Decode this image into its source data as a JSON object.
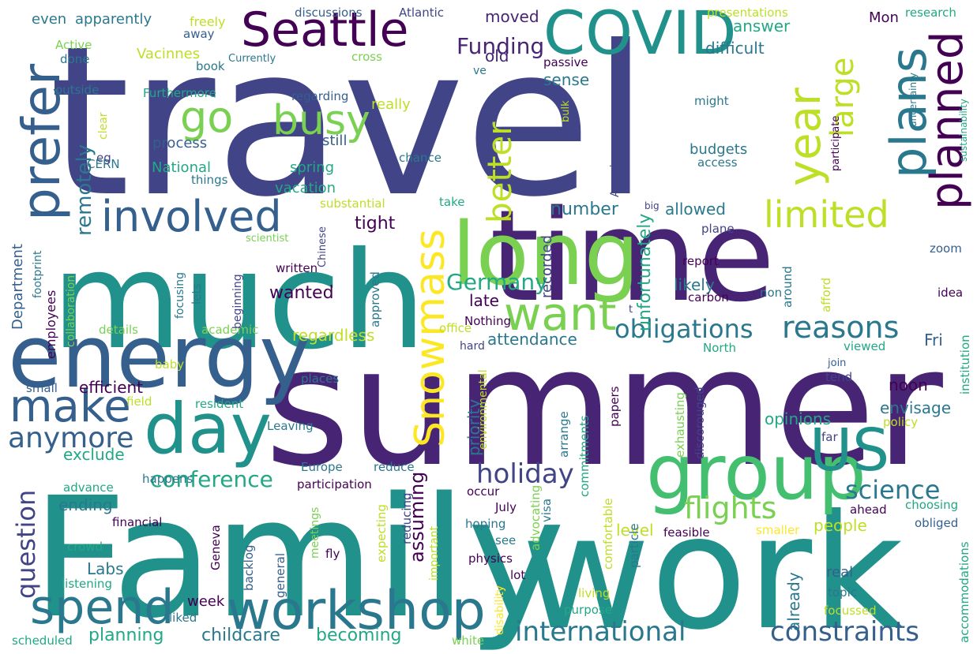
{
  "word_cloud": {
    "palette": {
      "deep_purple": "#440154",
      "purple": "#482475",
      "indigo": "#414487",
      "blue": "#355f8d",
      "steel": "#2a788e",
      "teal": "#21918c",
      "sea": "#22a884",
      "green": "#44bf70",
      "lime": "#7ad151",
      "chartreuse": "#bddf26",
      "yellow": "#fde725"
    },
    "words": [
      {
        "text": "travel",
        "color": "#414487"
      },
      {
        "text": "summer",
        "color": "#482475"
      },
      {
        "text": "Family",
        "color": "#21918c"
      },
      {
        "text": "work",
        "color": "#21918c"
      },
      {
        "text": "time",
        "color": "#482475"
      },
      {
        "text": "much",
        "color": "#21918c"
      },
      {
        "text": "long",
        "color": "#7ad151"
      },
      {
        "text": "energy",
        "color": "#355f8d"
      },
      {
        "text": "group",
        "color": "#44bf70"
      },
      {
        "text": "COVID",
        "color": "#21918c"
      },
      {
        "text": "day",
        "color": "#21918c"
      },
      {
        "text": "US",
        "color": "#21918c"
      },
      {
        "text": "workshop",
        "color": "#2a788e"
      },
      {
        "text": "Seattle",
        "color": "#440154"
      },
      {
        "text": "involved",
        "color": "#355f8d"
      },
      {
        "text": "make",
        "color": "#355f8d"
      },
      {
        "text": "spend",
        "color": "#2a788e"
      },
      {
        "text": "prefer",
        "color": "#355f8d"
      },
      {
        "text": "want",
        "color": "#7ad151"
      },
      {
        "text": "plans",
        "color": "#2a788e"
      },
      {
        "text": "planned",
        "color": "#440154"
      },
      {
        "text": "busy",
        "color": "#7ad151"
      },
      {
        "text": "go",
        "color": "#7ad151"
      },
      {
        "text": "year",
        "color": "#bddf26"
      },
      {
        "text": "limited",
        "color": "#bddf26"
      },
      {
        "text": "Snowmass",
        "color": "#fde725"
      },
      {
        "text": "better",
        "color": "#bddf26"
      },
      {
        "text": "large",
        "color": "#bddf26"
      },
      {
        "text": "reasons",
        "color": "#2a788e"
      },
      {
        "text": "obligations",
        "color": "#2a788e"
      },
      {
        "text": "flights",
        "color": "#7ad151"
      },
      {
        "text": "anymore",
        "color": "#355f8d"
      },
      {
        "text": "international",
        "color": "#2a788e"
      },
      {
        "text": "constraints",
        "color": "#355f8d"
      },
      {
        "text": "holiday",
        "color": "#414487"
      },
      {
        "text": "question",
        "color": "#414487"
      },
      {
        "text": "science",
        "color": "#2a788e"
      },
      {
        "text": "Germany",
        "color": "#22a884"
      },
      {
        "text": "conference",
        "color": "#22a884"
      },
      {
        "text": "Funding",
        "color": "#482475"
      },
      {
        "text": "remotely",
        "color": "#2a788e"
      },
      {
        "text": "childcare",
        "color": "#2a788e"
      },
      {
        "text": "becoming",
        "color": "#22a884"
      },
      {
        "text": "planning",
        "color": "#22a884"
      },
      {
        "text": "Labs",
        "color": "#2a788e"
      },
      {
        "text": "assuming",
        "color": "#440154"
      },
      {
        "text": "efficient",
        "color": "#440154"
      },
      {
        "text": "exclude",
        "color": "#22a884"
      },
      {
        "text": "ending",
        "color": "#2a788e"
      },
      {
        "text": "attendance",
        "color": "#2a788e"
      },
      {
        "text": "number",
        "color": "#2a788e"
      },
      {
        "text": "tight",
        "color": "#440154"
      },
      {
        "text": "recorded",
        "color": "#414487"
      },
      {
        "text": "unfortunately",
        "color": "#22a884"
      },
      {
        "text": "allowed",
        "color": "#2a788e"
      },
      {
        "text": "likely",
        "color": "#2a788e"
      },
      {
        "text": "wanted",
        "color": "#440154"
      },
      {
        "text": "late",
        "color": "#440154"
      },
      {
        "text": "regardless",
        "color": "#bddf26"
      },
      {
        "text": "priority",
        "color": "#2a788e"
      },
      {
        "text": "opinions",
        "color": "#22a884"
      },
      {
        "text": "people",
        "color": "#bddf26"
      },
      {
        "text": "level",
        "color": "#bddf26"
      },
      {
        "text": "already",
        "color": "#2a788e"
      },
      {
        "text": "envisage",
        "color": "#2a788e"
      },
      {
        "text": "noon",
        "color": "#440154"
      },
      {
        "text": "Fri",
        "color": "#355f8d"
      },
      {
        "text": "answer",
        "color": "#22a884"
      },
      {
        "text": "difficult",
        "color": "#2a788e"
      },
      {
        "text": "sense",
        "color": "#2a788e"
      },
      {
        "text": "moved",
        "color": "#482475"
      },
      {
        "text": "old",
        "color": "#482475"
      },
      {
        "text": "Vacinnes",
        "color": "#bddf26"
      },
      {
        "text": "process",
        "color": "#355f8d"
      },
      {
        "text": "National",
        "color": "#22a884"
      },
      {
        "text": "still",
        "color": "#355f8d"
      },
      {
        "text": "spring",
        "color": "#22a884"
      },
      {
        "text": "vacation",
        "color": "#22a884"
      },
      {
        "text": "budgets",
        "color": "#2a788e"
      },
      {
        "text": "apparently",
        "color": "#2a788e"
      },
      {
        "text": "even",
        "color": "#2a788e"
      },
      {
        "text": "freely",
        "color": "#bddf26"
      },
      {
        "text": "discussions",
        "color": "#355f8d"
      },
      {
        "text": "Atlantic",
        "color": "#414487"
      },
      {
        "text": "presentations",
        "color": "#bddf26"
      },
      {
        "text": "Mon",
        "color": "#440154"
      },
      {
        "text": "research",
        "color": "#22a884"
      },
      {
        "text": "really",
        "color": "#bddf26"
      },
      {
        "text": "chance",
        "color": "#2a788e"
      },
      {
        "text": "week",
        "color": "#440154"
      },
      {
        "text": "Department",
        "color": "#355f8d"
      },
      {
        "text": "employees",
        "color": "#440154"
      },
      {
        "text": "collaboration",
        "color": "#7ad151"
      },
      {
        "text": "footprint",
        "color": "#2a788e"
      },
      {
        "text": "substantial",
        "color": "#bddf26"
      },
      {
        "text": "take",
        "color": "#22a884"
      },
      {
        "text": "America",
        "color": "#414487"
      },
      {
        "text": "big",
        "color": "#414487"
      },
      {
        "text": "plane",
        "color": "#414487"
      },
      {
        "text": "zoom",
        "color": "#355f8d"
      },
      {
        "text": "report",
        "color": "#440154"
      },
      {
        "text": "carbon",
        "color": "#440154"
      },
      {
        "text": "non",
        "color": "#2a788e"
      },
      {
        "text": "around",
        "color": "#2a788e"
      },
      {
        "text": "afford",
        "color": "#bddf26"
      },
      {
        "text": "idea",
        "color": "#440154"
      },
      {
        "text": "viewed",
        "color": "#22a884"
      },
      {
        "text": "join",
        "color": "#355f8d"
      },
      {
        "text": "tend",
        "color": "#414487"
      },
      {
        "text": "North",
        "color": "#22a884"
      },
      {
        "text": "hard",
        "color": "#414487"
      },
      {
        "text": "office",
        "color": "#bddf26"
      },
      {
        "text": "Nothing",
        "color": "#440154"
      },
      {
        "text": "papers",
        "color": "#440154"
      },
      {
        "text": "exhausting",
        "color": "#7ad151"
      },
      {
        "text": "discorouged",
        "color": "#414487"
      },
      {
        "text": "institution",
        "color": "#22a884"
      },
      {
        "text": "policy",
        "color": "#bddf26"
      },
      {
        "text": "far",
        "color": "#414487"
      },
      {
        "text": "ahead",
        "color": "#440154"
      },
      {
        "text": "choosing",
        "color": "#22a884"
      },
      {
        "text": "feasible",
        "color": "#440154"
      },
      {
        "text": "smaller",
        "color": "#fde725"
      },
      {
        "text": "obliged",
        "color": "#355f8d"
      },
      {
        "text": "accommodations",
        "color": "#22a884"
      },
      {
        "text": "real",
        "color": "#355f8d"
      },
      {
        "text": "topic",
        "color": "#2a788e"
      },
      {
        "text": "focussed",
        "color": "#bddf26"
      },
      {
        "text": "purpose",
        "color": "#22a884"
      },
      {
        "text": "white",
        "color": "#7ad151"
      },
      {
        "text": "scheduled",
        "color": "#22a884"
      },
      {
        "text": "liked",
        "color": "#2a788e"
      },
      {
        "text": "living",
        "color": "#bddf26"
      },
      {
        "text": "disability",
        "color": "#fde725"
      },
      {
        "text": "lot",
        "color": "#440154"
      },
      {
        "text": "physics",
        "color": "#440154"
      },
      {
        "text": "see",
        "color": "#2a788e"
      },
      {
        "text": "hoping",
        "color": "#2a788e"
      },
      {
        "text": "July",
        "color": "#440154"
      },
      {
        "text": "occur",
        "color": "#440154"
      },
      {
        "text": "participation",
        "color": "#440154"
      },
      {
        "text": "reduce",
        "color": "#2a788e"
      },
      {
        "text": "Europe",
        "color": "#2a788e"
      },
      {
        "text": "environmental",
        "color": "#bddf26"
      },
      {
        "text": "advocating",
        "color": "#7ad151"
      },
      {
        "text": "arrange",
        "color": "#2a788e"
      },
      {
        "text": "commitments",
        "color": "#22a884"
      },
      {
        "text": "visa",
        "color": "#2a788e"
      },
      {
        "text": "particle",
        "color": "#2a788e"
      },
      {
        "text": "comfortable",
        "color": "#bddf26"
      },
      {
        "text": "expecting",
        "color": "#bddf26"
      },
      {
        "text": "reducing",
        "color": "#414487"
      },
      {
        "text": "important",
        "color": "#bddf26"
      },
      {
        "text": "general",
        "color": "#355f8d"
      },
      {
        "text": "meetings",
        "color": "#7ad151"
      },
      {
        "text": "fly",
        "color": "#440154"
      },
      {
        "text": "backlog",
        "color": "#355f8d"
      },
      {
        "text": "Geneva",
        "color": "#440154"
      },
      {
        "text": "happens",
        "color": "#2a788e"
      },
      {
        "text": "field",
        "color": "#bddf26"
      },
      {
        "text": "resident",
        "color": "#22a884"
      },
      {
        "text": "Leaving",
        "color": "#2a788e"
      },
      {
        "text": "places",
        "color": "#2a788e"
      },
      {
        "text": "baby",
        "color": "#bddf26"
      },
      {
        "text": "small",
        "color": "#355f8d"
      },
      {
        "text": "details",
        "color": "#7ad151"
      },
      {
        "text": "academic",
        "color": "#7ad151"
      },
      {
        "text": "advance",
        "color": "#22a884"
      },
      {
        "text": "financial",
        "color": "#440154"
      },
      {
        "text": "crowd",
        "color": "#22a884"
      },
      {
        "text": "listening",
        "color": "#22a884"
      },
      {
        "text": "lets",
        "color": "#2a788e"
      },
      {
        "text": "focusing",
        "color": "#2a788e"
      },
      {
        "text": "beginning",
        "color": "#414487"
      },
      {
        "text": "written",
        "color": "#440154"
      },
      {
        "text": "approved",
        "color": "#2a788e"
      },
      {
        "text": "scientist",
        "color": "#7ad151"
      },
      {
        "text": "Chinese",
        "color": "#414487"
      },
      {
        "text": "CERN",
        "color": "#2a788e"
      },
      {
        "text": "eg",
        "color": "#414487"
      },
      {
        "text": "things",
        "color": "#2a788e"
      },
      {
        "text": "clear",
        "color": "#bddf26"
      },
      {
        "text": "outside",
        "color": "#2a788e"
      },
      {
        "text": "Furthermore",
        "color": "#22a884"
      },
      {
        "text": "regarding",
        "color": "#355f8d"
      },
      {
        "text": "done",
        "color": "#2a788e"
      },
      {
        "text": "Active",
        "color": "#7ad151"
      },
      {
        "text": "book",
        "color": "#2a788e"
      },
      {
        "text": "Currently",
        "color": "#2a788e"
      },
      {
        "text": "cross",
        "color": "#7ad151"
      },
      {
        "text": "away",
        "color": "#355f8d"
      },
      {
        "text": "ve",
        "color": "#2a788e"
      },
      {
        "text": "passive",
        "color": "#440154"
      },
      {
        "text": "might",
        "color": "#2a788e"
      },
      {
        "text": "bulk",
        "color": "#bddf26"
      },
      {
        "text": "participate",
        "color": "#440154"
      },
      {
        "text": "uncertainty",
        "color": "#2a788e"
      },
      {
        "text": "sustainability",
        "color": "#22a884"
      },
      {
        "text": "access",
        "color": "#2a788e"
      },
      {
        "text": "t",
        "color": "#414487"
      }
    ]
  }
}
